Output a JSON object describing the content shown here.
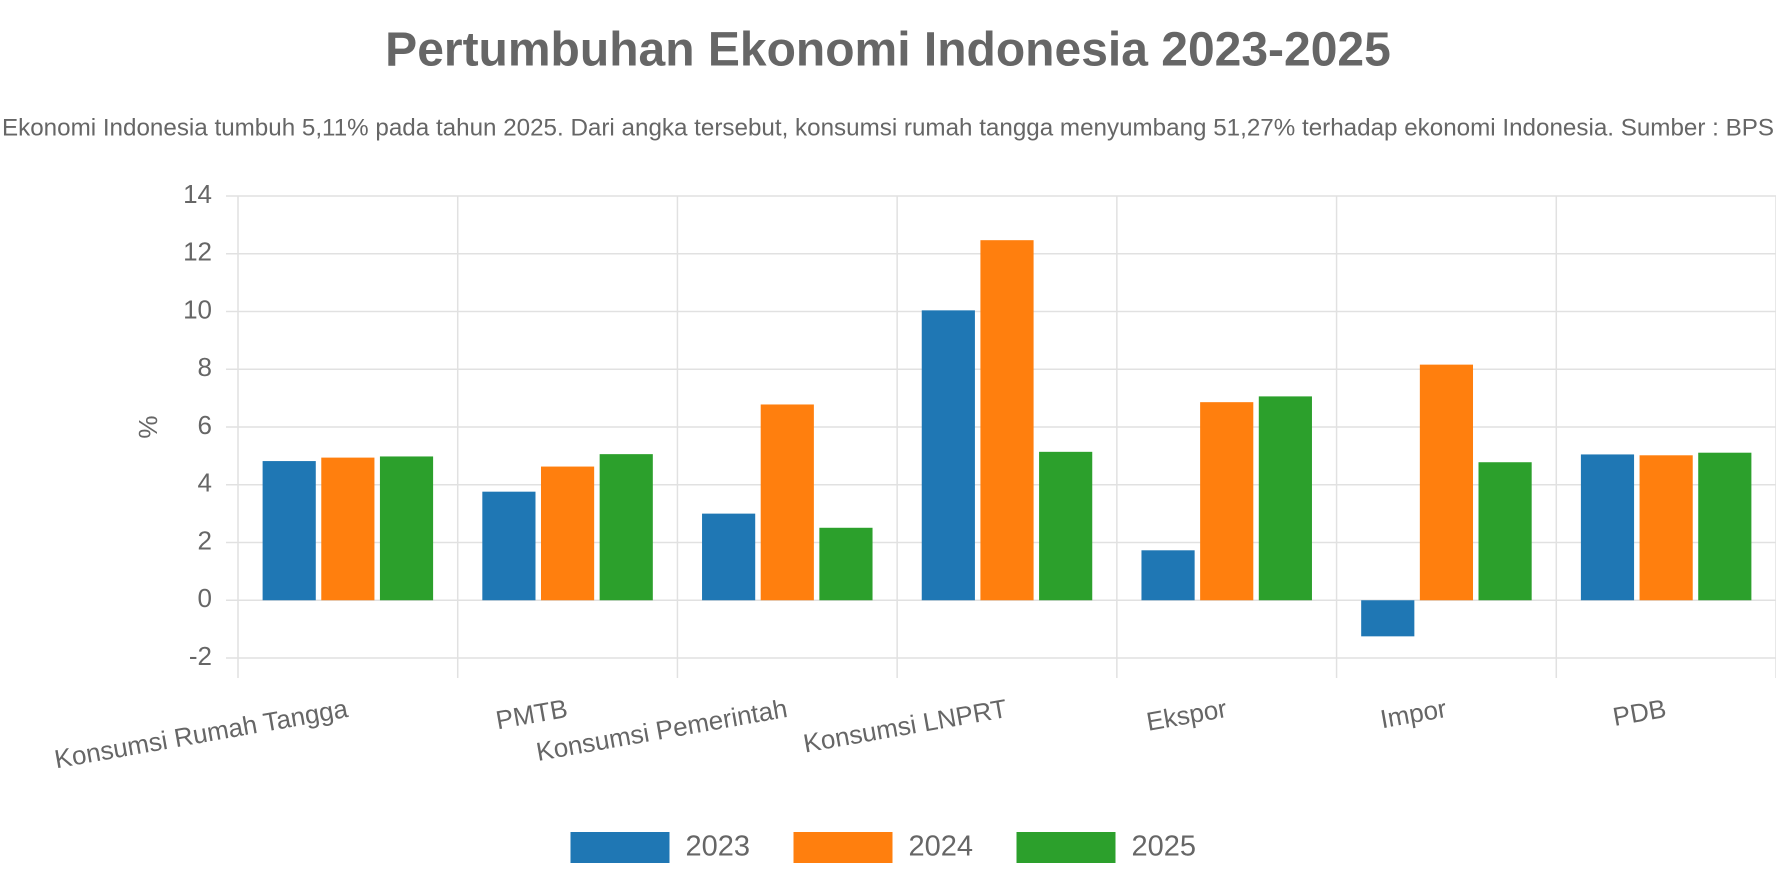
{
  "chart_data": {
    "type": "bar",
    "title": "Pertumbuhan Ekonomi Indonesia 2023-2025",
    "subtitle": "Ekonomi Indonesia tumbuh 5,11% pada tahun 2025. Dari angka tersebut, konsumsi rumah tangga menyumbang 51,27% terhadap ekonomi Indonesia. Sumber : BPS",
    "y_label": "%",
    "categories": [
      "Konsumsi Rumah Tangga",
      "PMTB",
      "Konsumsi Pemerintah",
      "Konsumsi LNPRT",
      "Ekspor",
      "Impor",
      "PDB"
    ],
    "series": [
      {
        "name": "2023",
        "color": "#1f77b4",
        "values": [
          4.82,
          3.76,
          3.0,
          10.04,
          1.73,
          -1.25,
          5.05
        ]
      },
      {
        "name": "2024",
        "color": "#ff7f0e",
        "values": [
          4.94,
          4.63,
          6.78,
          12.47,
          6.86,
          8.16,
          5.02
        ]
      },
      {
        "name": "2025",
        "color": "#2ca02c",
        "values": [
          4.98,
          5.06,
          2.51,
          5.14,
          7.06,
          4.78,
          5.11
        ]
      }
    ],
    "ylim": [
      -2,
      14
    ],
    "yticks": [
      -2,
      0,
      2,
      4,
      6,
      8,
      10,
      12,
      14
    ],
    "grid": true
  }
}
